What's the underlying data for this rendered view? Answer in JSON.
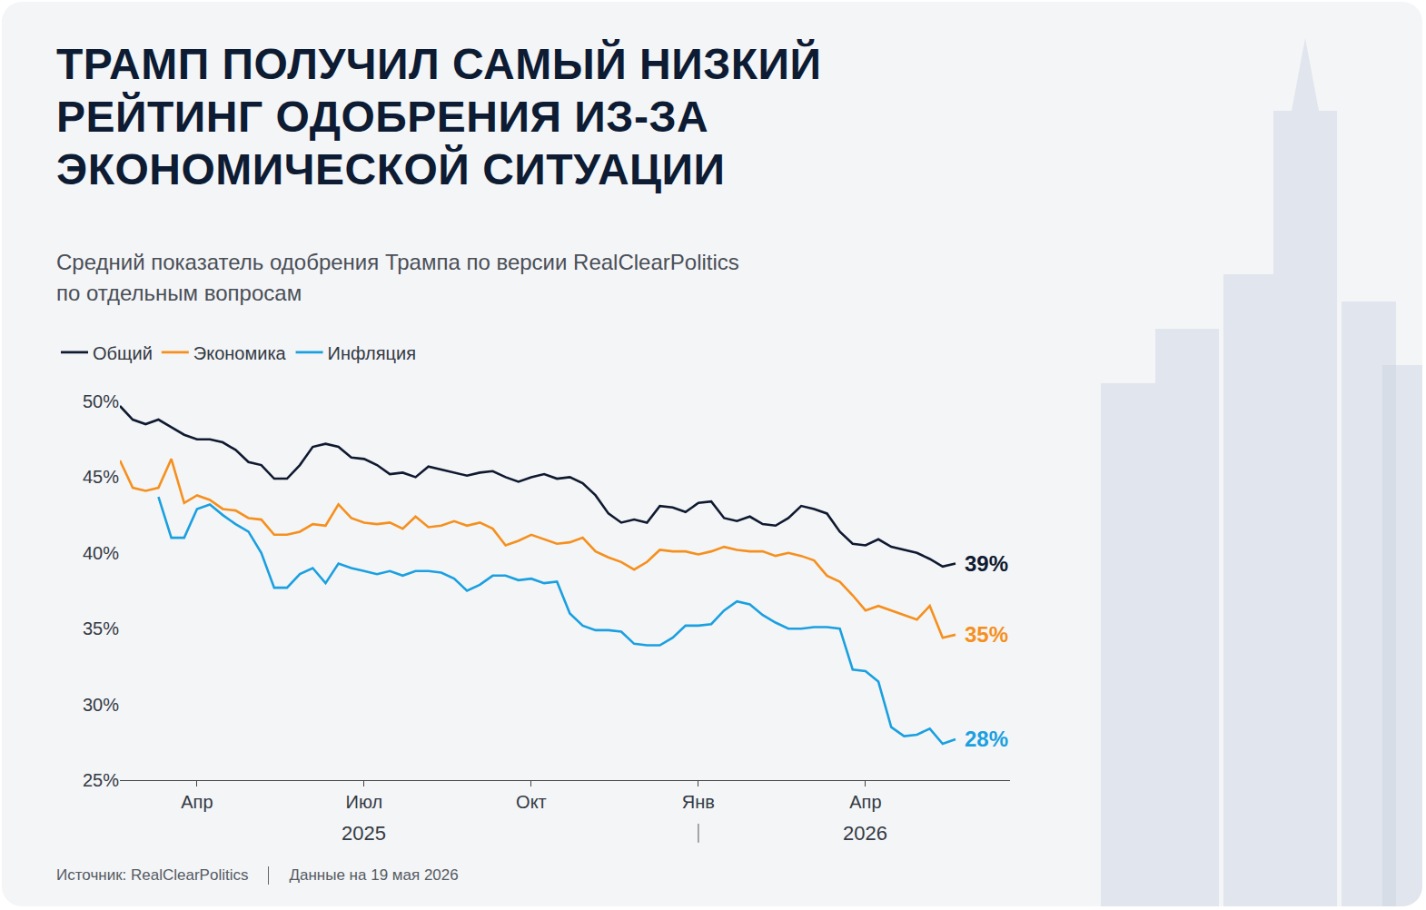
{
  "chart_data": {
    "type": "line",
    "title": "ТРАМП ПОЛУЧИЛ САМЫЙ НИЗКИЙ РЕЙТИНГ ОДОБРЕНИЯ ИЗ-ЗА ЭКОНОМИЧЕСКОЙ СИТУАЦИИ",
    "subtitle": "Средний показатель одобрения Трампа по версии RealClearPolitics по отдельным вопросам",
    "source": "Источник: RealClearPolitics",
    "note": "Данные на 19 мая 2026",
    "legend": "top-left",
    "grid": false,
    "categories": [
      null,
      null,
      null,
      null,
      null,
      null,
      "Апр",
      null,
      null,
      null,
      null,
      null,
      null,
      null,
      null,
      null,
      null,
      null,
      null,
      "Июл",
      null,
      null,
      null,
      null,
      null,
      null,
      null,
      null,
      null,
      null,
      null,
      null,
      "Окт",
      null,
      null,
      null,
      null,
      null,
      null,
      null,
      null,
      null,
      null,
      null,
      null,
      "Янв",
      null,
      null,
      null,
      null,
      null,
      null,
      null,
      null,
      null,
      null,
      null,
      null,
      "Апр",
      null,
      null,
      null,
      null,
      null,
      null,
      null
    ],
    "annotations": [
      {
        "text": "2025",
        "x": 19
      },
      {
        "text": "2026",
        "x": 58
      }
    ],
    "ylim": [
      25,
      50
    ],
    "yticks": [
      {
        "value": 25,
        "label": "25%"
      },
      {
        "value": 30,
        "label": "30%"
      },
      {
        "value": 35,
        "label": "35%"
      },
      {
        "value": 40,
        "label": "40%"
      },
      {
        "value": 45,
        "label": "45%"
      },
      {
        "value": 50,
        "label": "50%"
      }
    ],
    "series": [
      {
        "name": "Общий",
        "color": "#0f1a30",
        "values": [
          49.7,
          48.8,
          48.5,
          48.8,
          48.3,
          47.8,
          47.5,
          47.5,
          47.3,
          46.8,
          46.0,
          45.8,
          44.9,
          44.9,
          45.8,
          47.0,
          47.2,
          47.0,
          46.3,
          46.2,
          45.8,
          45.2,
          45.3,
          45.0,
          45.7,
          45.5,
          45.3,
          45.1,
          45.3,
          45.4,
          45.0,
          44.7,
          45.0,
          45.2,
          44.9,
          45.0,
          44.6,
          43.8,
          42.6,
          42.0,
          42.2,
          42.0,
          43.1,
          43.0,
          42.7,
          43.3,
          43.4,
          42.3,
          42.1,
          42.4,
          41.9,
          41.8,
          42.3,
          43.1,
          42.9,
          42.6,
          41.4,
          40.6,
          40.5,
          40.9,
          40.4,
          40.2,
          40.0,
          39.6,
          39.1,
          39.3
        ],
        "value_labels": [
          null,
          null,
          null,
          null,
          null,
          null,
          null,
          null,
          null,
          null,
          null,
          null,
          null,
          null,
          null,
          null,
          null,
          null,
          null,
          null,
          null,
          null,
          null,
          null,
          null,
          null,
          null,
          null,
          null,
          null,
          null,
          null,
          null,
          null,
          null,
          null,
          null,
          null,
          null,
          null,
          null,
          null,
          null,
          null,
          null,
          null,
          null,
          null,
          null,
          null,
          null,
          null,
          null,
          null,
          null,
          null,
          null,
          null,
          null,
          null,
          null,
          null,
          null,
          null,
          null,
          "39%"
        ]
      },
      {
        "name": "Экономика",
        "color": "#f5901e",
        "values": [
          46.1,
          44.3,
          44.1,
          44.3,
          46.2,
          43.3,
          43.8,
          43.5,
          42.9,
          42.8,
          42.3,
          42.2,
          41.2,
          41.2,
          41.4,
          41.9,
          41.8,
          43.2,
          42.3,
          42.0,
          41.9,
          42.0,
          41.6,
          42.4,
          41.7,
          41.8,
          42.1,
          41.8,
          42.0,
          41.6,
          40.5,
          40.8,
          41.2,
          40.9,
          40.6,
          40.7,
          41.0,
          40.1,
          39.7,
          39.4,
          38.9,
          39.4,
          40.2,
          40.1,
          40.1,
          39.9,
          40.1,
          40.4,
          40.2,
          40.1,
          40.1,
          39.8,
          40.0,
          39.8,
          39.5,
          38.5,
          38.1,
          37.2,
          36.2,
          36.5,
          36.2,
          35.9,
          35.6,
          36.5,
          34.4,
          34.6
        ],
        "value_labels": [
          null,
          null,
          null,
          null,
          null,
          null,
          null,
          null,
          null,
          null,
          null,
          null,
          null,
          null,
          null,
          null,
          null,
          null,
          null,
          null,
          null,
          null,
          null,
          null,
          null,
          null,
          null,
          null,
          null,
          null,
          null,
          null,
          null,
          null,
          null,
          null,
          null,
          null,
          null,
          null,
          null,
          null,
          null,
          null,
          null,
          null,
          null,
          null,
          null,
          null,
          null,
          null,
          null,
          null,
          null,
          null,
          null,
          null,
          null,
          null,
          null,
          null,
          null,
          null,
          null,
          "35%"
        ]
      },
      {
        "name": "Инфляция",
        "color": "#1aa0e0",
        "values": [
          null,
          null,
          null,
          43.7,
          41.0,
          41.0,
          42.9,
          43.2,
          42.5,
          41.9,
          41.4,
          40.0,
          37.7,
          37.7,
          38.6,
          39.0,
          38.0,
          39.3,
          39.0,
          38.8,
          38.6,
          38.8,
          38.5,
          38.8,
          38.8,
          38.7,
          38.3,
          37.5,
          37.9,
          38.5,
          38.5,
          38.2,
          38.3,
          38.0,
          38.1,
          36.0,
          35.2,
          34.9,
          34.9,
          34.8,
          34.0,
          33.9,
          33.9,
          34.4,
          35.2,
          35.2,
          35.3,
          36.2,
          36.8,
          36.6,
          35.9,
          35.4,
          35.0,
          35.0,
          35.1,
          35.1,
          35.0,
          32.3,
          32.2,
          31.5,
          28.5,
          27.9,
          28.0,
          28.4,
          27.4,
          27.7
        ],
        "value_labels": [
          null,
          null,
          null,
          null,
          null,
          null,
          null,
          null,
          null,
          null,
          null,
          null,
          null,
          null,
          null,
          null,
          null,
          null,
          null,
          null,
          null,
          null,
          null,
          null,
          null,
          null,
          null,
          null,
          null,
          null,
          null,
          null,
          null,
          null,
          null,
          null,
          null,
          null,
          null,
          null,
          null,
          null,
          null,
          null,
          null,
          null,
          null,
          null,
          null,
          null,
          null,
          null,
          null,
          null,
          null,
          null,
          null,
          null,
          null,
          null,
          null,
          null,
          null,
          null,
          null,
          "28%"
        ]
      }
    ]
  }
}
